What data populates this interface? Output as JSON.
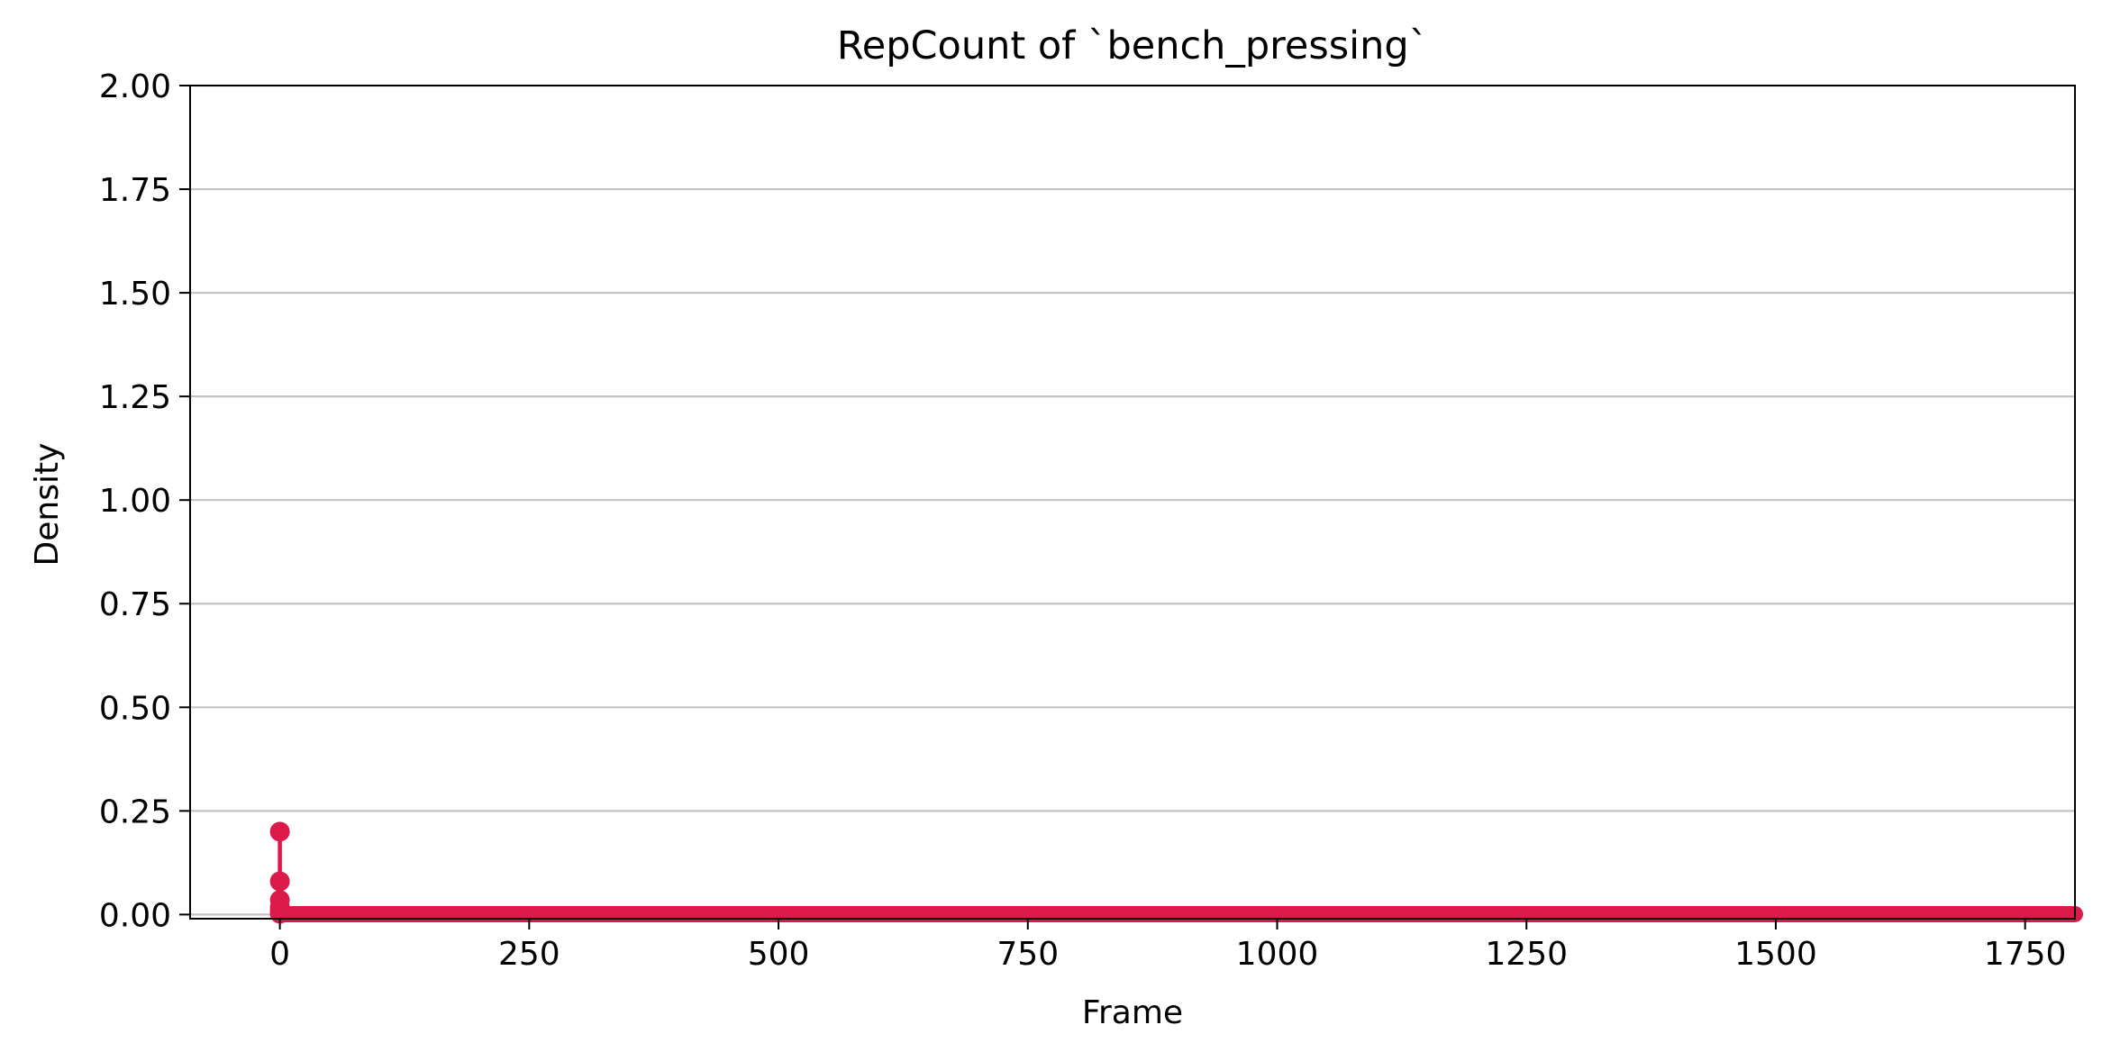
{
  "chart_data": {
    "type": "line",
    "title": "RepCount of `bench_pressing`",
    "xlabel": "Frame",
    "ylabel": "Density",
    "xlim": [
      -90,
      1800
    ],
    "ylim": [
      -0.01,
      2.0
    ],
    "x_ticks": [
      0,
      250,
      500,
      750,
      1000,
      1250,
      1500,
      1750
    ],
    "y_ticks": [
      0.0,
      0.25,
      0.5,
      0.75,
      1.0,
      1.25,
      1.5,
      1.75,
      2.0
    ],
    "x_tick_labels": [
      "0",
      "250",
      "500",
      "750",
      "1000",
      "1250",
      "1500",
      "1750"
    ],
    "y_tick_labels": [
      "0.00",
      "0.25",
      "0.50",
      "0.75",
      "1.00",
      "1.25",
      "1.50",
      "1.75",
      "2.00"
    ],
    "grid": {
      "axis": "y",
      "on": true
    },
    "legend": "none",
    "series": [
      {
        "color": "#dc1a4a",
        "points": [
          [
            0,
            0.2
          ],
          [
            0,
            0.08
          ],
          [
            0,
            0.035
          ],
          [
            0,
            0.018
          ],
          [
            0,
            0.01
          ],
          [
            0,
            0.005
          ],
          [
            0,
            0.002
          ]
        ],
        "tail": {
          "x_start": 1,
          "x_end": 1800,
          "value": 0.001
        }
      }
    ]
  }
}
